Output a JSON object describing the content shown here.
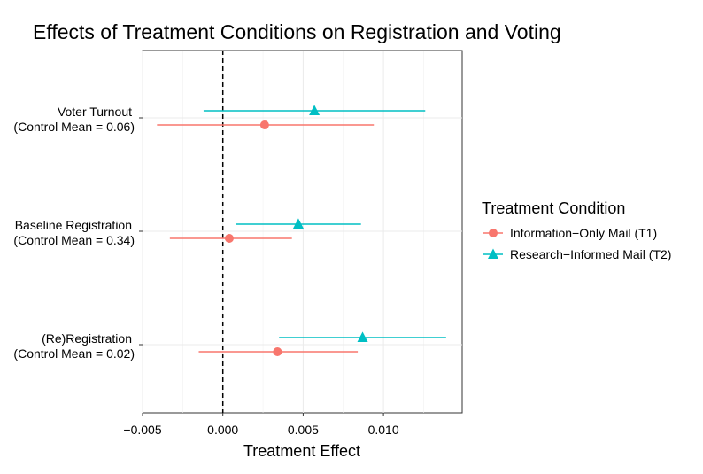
{
  "chart_data": {
    "type": "scatter",
    "subtype": "coefficient-plot",
    "title": "Effects of Treatment Conditions on Registration and Voting",
    "xlabel": "Treatment Effect",
    "ylabel": "",
    "xlim": [
      -0.005,
      0.0149
    ],
    "x_ticks": [
      -0.005,
      0.0,
      0.005,
      0.01
    ],
    "x_tick_labels": [
      "−0.005",
      "0.000",
      "0.005",
      "0.010"
    ],
    "reference_line": 0.0,
    "categories": [
      {
        "label_line1": "Voter Turnout",
        "label_line2": "(Control Mean = 0.06)"
      },
      {
        "label_line1": "Baseline Registration",
        "label_line2": "(Control Mean = 0.34)"
      },
      {
        "label_line1": "(Re)Registration",
        "label_line2": "(Control Mean = 0.02)"
      }
    ],
    "legend": {
      "title": "Treatment Condition",
      "position": "right"
    },
    "series": [
      {
        "name": "Information−Only Mail (T1)",
        "color": "#F8766D",
        "marker": "circle",
        "estimates": [
          0.0026,
          0.0004,
          0.0034
        ],
        "ci_low": [
          -0.0041,
          -0.0033,
          -0.0015
        ],
        "ci_high": [
          0.0094,
          0.0043,
          0.0084
        ]
      },
      {
        "name": "Research−Informed Mail (T2)",
        "color": "#00BFC4",
        "marker": "triangle",
        "estimates": [
          0.0057,
          0.0047,
          0.0087
        ],
        "ci_low": [
          -0.0012,
          0.0008,
          0.0035
        ],
        "ci_high": [
          0.0126,
          0.0086,
          0.0139
        ]
      }
    ]
  }
}
